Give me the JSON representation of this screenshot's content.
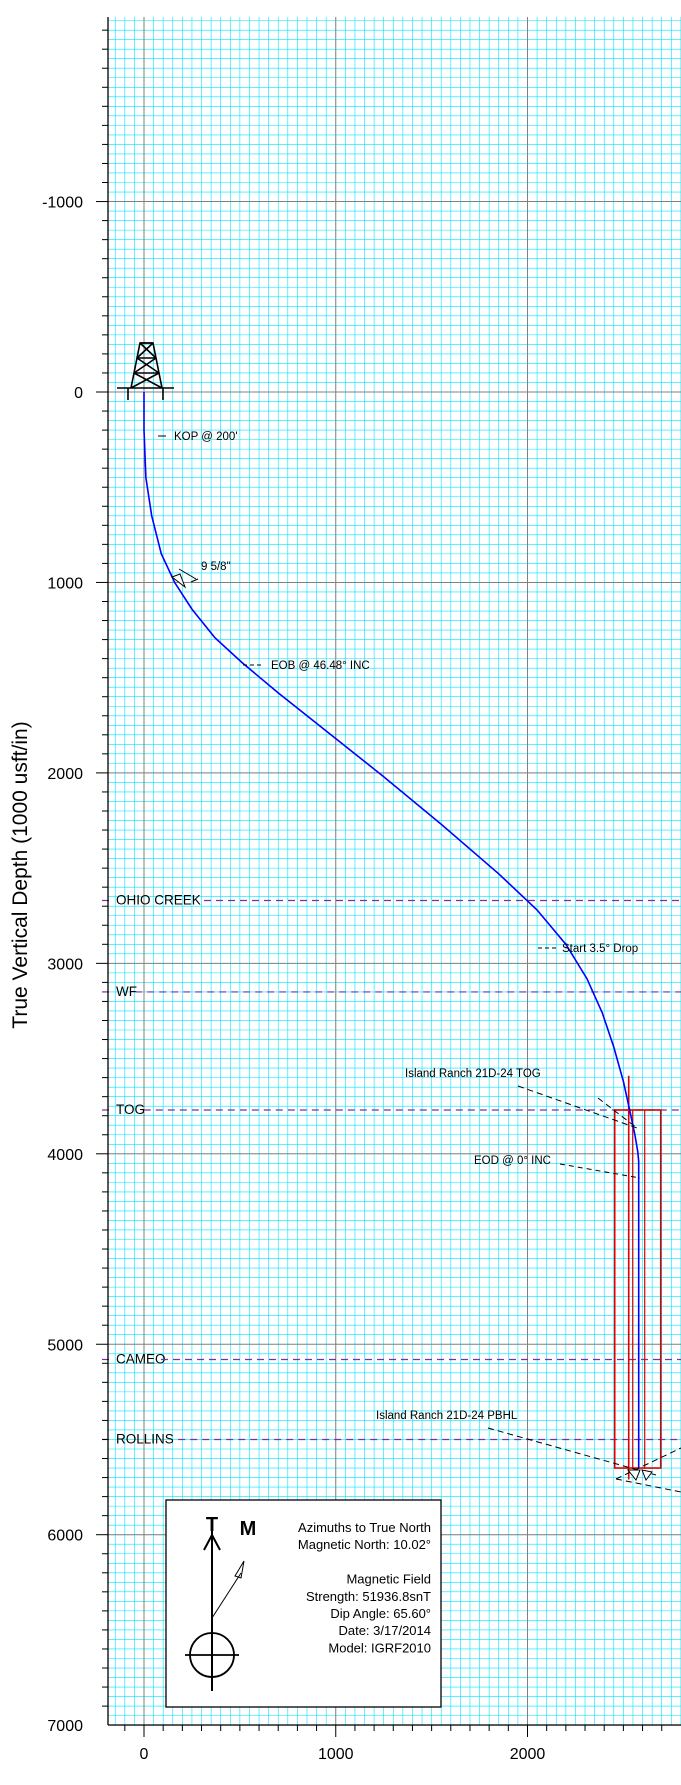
{
  "chart_data": {
    "type": "line",
    "title": "",
    "ylabel": "True Vertical Depth (1000 usft/in)",
    "xlabel": "",
    "xlim": [
      -190,
      2780
    ],
    "ylim": [
      -2070,
      7000
    ],
    "y_ticks": [
      -1000,
      0,
      1000,
      2000,
      3000,
      4000,
      5000,
      6000,
      7000
    ],
    "x_ticks": [
      0,
      1000,
      2000
    ],
    "grid": true,
    "series": [
      {
        "color": "#0000ff",
        "x": [
          0,
          0,
          10,
          40,
          90,
          160,
          250,
          370,
          510,
          700,
          950,
          1250,
          1550,
          1850,
          2050,
          2200,
          2310,
          2390,
          2450,
          2500,
          2535,
          2560,
          2575,
          2580,
          2580,
          2580
        ],
        "y": [
          0,
          200,
          450,
          650,
          850,
          1000,
          1140,
          1290,
          1420,
          1580,
          1780,
          2020,
          2270,
          2530,
          2720,
          2900,
          3080,
          3260,
          3440,
          3620,
          3780,
          3900,
          3990,
          4040,
          5000,
          5650
        ]
      }
    ],
    "formations": [
      {
        "label": "OHIO CREEK",
        "y": 2670
      },
      {
        "label": "WF",
        "y": 3150
      },
      {
        "label": "TOG",
        "y": 3770
      },
      {
        "label": "CAMEO",
        "y": 5080
      },
      {
        "label": "ROLLINS",
        "y": 5500
      }
    ],
    "annotations": [
      {
        "text": "KOP @ 200'",
        "y": 200
      },
      {
        "text": "9 5/8\"",
        "y": 880
      },
      {
        "text": "EOB @ 46.48° INC",
        "y": 1380
      },
      {
        "text": "Start 3.5° Drop",
        "y": 2840
      },
      {
        "text": "Island Ranch 21D-24 TOG",
        "y": 3550
      },
      {
        "text": "EOD @ 0° INC",
        "y": 3950
      },
      {
        "text": "Island Ranch 21D-24 PBHL",
        "y": 5330
      }
    ],
    "legend": {
      "true_north_letter": "T",
      "magnetic_letter": "M",
      "lines": [
        "Azimuths to True North",
        "Magnetic North: 10.02°",
        "",
        "Magnetic Field",
        "Strength: 51936.8snT",
        "Dip Angle: 65.60°",
        "Date: 3/17/2014",
        "Model: IGRF2010"
      ]
    },
    "colors": {
      "wellpath": "#0000ff",
      "target": "#dd0000",
      "formation": "#7b2ea6",
      "minor_grid": "#00e5ff",
      "major_grid": "#808080"
    }
  }
}
